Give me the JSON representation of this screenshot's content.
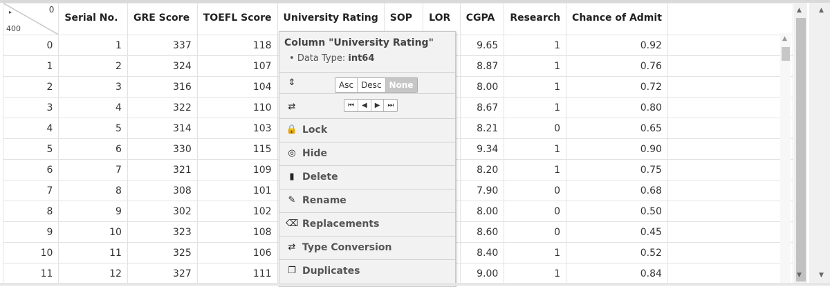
{
  "corner": {
    "total_rows": "400",
    "zero": "0",
    "arrow": "▸"
  },
  "columns": [
    "Serial No.",
    "GRE Score",
    "TOEFL Score",
    "University Rating",
    "SOP",
    "LOR",
    "CGPA",
    "Research",
    "Chance of Admit"
  ],
  "rows": [
    [
      "0",
      "1",
      "337",
      "118",
      "",
      "",
      "",
      "9.65",
      "1",
      "0.92"
    ],
    [
      "1",
      "2",
      "324",
      "107",
      "",
      "",
      "",
      "8.87",
      "1",
      "0.76"
    ],
    [
      "2",
      "3",
      "316",
      "104",
      "",
      "",
      "",
      "8.00",
      "1",
      "0.72"
    ],
    [
      "3",
      "4",
      "322",
      "110",
      "",
      "",
      "",
      "8.67",
      "1",
      "0.80"
    ],
    [
      "4",
      "5",
      "314",
      "103",
      "",
      "",
      "",
      "8.21",
      "0",
      "0.65"
    ],
    [
      "5",
      "6",
      "330",
      "115",
      "",
      "",
      "",
      "9.34",
      "1",
      "0.90"
    ],
    [
      "6",
      "7",
      "321",
      "109",
      "",
      "",
      "",
      "8.20",
      "1",
      "0.75"
    ],
    [
      "7",
      "8",
      "308",
      "101",
      "",
      "",
      "",
      "7.90",
      "0",
      "0.68"
    ],
    [
      "8",
      "9",
      "302",
      "102",
      "",
      "",
      "",
      "8.00",
      "0",
      "0.50"
    ],
    [
      "9",
      "10",
      "323",
      "108",
      "",
      "",
      "",
      "8.60",
      "0",
      "0.45"
    ],
    [
      "10",
      "11",
      "325",
      "106",
      "",
      "",
      "",
      "8.40",
      "1",
      "0.52"
    ],
    [
      "11",
      "12",
      "327",
      "111",
      "",
      "",
      "",
      "9.00",
      "1",
      "0.84"
    ]
  ],
  "menu": {
    "title": "Column \"University Rating\"",
    "dtype_label": "Data Type:",
    "dtype_value": "int64",
    "sort": {
      "asc": "Asc",
      "desc": "Desc",
      "none": "None",
      "active": "none"
    },
    "nav": [
      "⏮",
      "◀",
      "▶",
      "⏭"
    ],
    "items": [
      {
        "label": "Lock",
        "icon": "lock-icon",
        "glyph": "🔒"
      },
      {
        "label": "Hide",
        "icon": "eye-slash-icon",
        "glyph": "◎"
      },
      {
        "label": "Delete",
        "icon": "trash-icon",
        "glyph": "▮"
      },
      {
        "label": "Rename",
        "icon": "pencil-icon",
        "glyph": "✎"
      },
      {
        "label": "Replacements",
        "icon": "eraser-icon",
        "glyph": "⌫"
      },
      {
        "label": "Type Conversion",
        "icon": "exchange-icon",
        "glyph": "⇄"
      },
      {
        "label": "Duplicates",
        "icon": "clone-icon",
        "glyph": "❐"
      }
    ]
  }
}
